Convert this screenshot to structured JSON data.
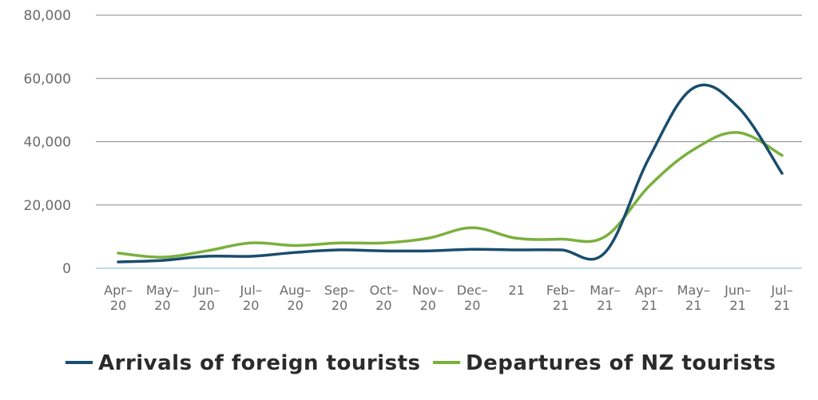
{
  "chart_data": {
    "type": "line",
    "categories": [
      [
        "Apr–",
        "20"
      ],
      [
        "May–",
        "20"
      ],
      [
        "Jun–",
        "20"
      ],
      [
        "Jul–",
        "20"
      ],
      [
        "Aug–",
        "20"
      ],
      [
        "Sep–",
        "20"
      ],
      [
        "Oct–",
        "20"
      ],
      [
        "Nov–",
        "20"
      ],
      [
        "Dec–",
        "20"
      ],
      [
        "21",
        ""
      ],
      [
        "Feb–",
        "21"
      ],
      [
        "Mar–",
        "21"
      ],
      [
        "Apr–",
        "21"
      ],
      [
        "May–",
        "21"
      ],
      [
        "Jun–",
        "21"
      ],
      [
        "Jul–",
        "21"
      ]
    ],
    "series": [
      {
        "name": "Arrivals of foreign tourists",
        "color": "#1a4d6e",
        "values": [
          2000,
          2500,
          3800,
          3800,
          5000,
          5800,
          5500,
          5500,
          6000,
          5800,
          5800,
          5000,
          35000,
          57000,
          51000,
          30000
        ]
      },
      {
        "name": "Departures of NZ tourists",
        "color": "#7ab03d",
        "values": [
          4800,
          3500,
          5500,
          8000,
          7200,
          8000,
          8000,
          9500,
          12800,
          9500,
          9200,
          10000,
          26000,
          37500,
          42900,
          35700
        ]
      }
    ],
    "yticks": [
      "0",
      "20,000",
      "40,000",
      "60,000",
      "80,000"
    ],
    "ytick_values": [
      0,
      20000,
      40000,
      60000,
      80000
    ],
    "ylim": [
      0,
      80000
    ],
    "grid": true,
    "legend": "bottom"
  }
}
